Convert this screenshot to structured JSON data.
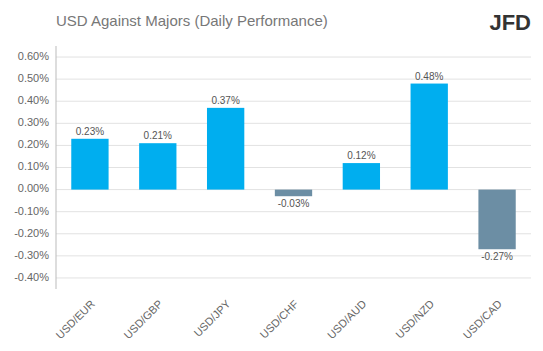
{
  "chart_data": {
    "type": "bar",
    "title": "USD Against Majors (Daily Performance)",
    "annotations": [
      "JFD"
    ],
    "categories": [
      "USD/EUR",
      "USD/GBP",
      "USD/JPY",
      "USD/CHF",
      "USD/AUD",
      "USD/NZD",
      "USD/CAD"
    ],
    "values": [
      0.23,
      0.21,
      0.37,
      -0.03,
      0.12,
      0.48,
      -0.27
    ],
    "value_labels": [
      "0.23%",
      "0.21%",
      "0.37%",
      "-0.03%",
      "0.12%",
      "0.48%",
      "-0.27%"
    ],
    "colors": [
      "#00AEEF",
      "#00AEEF",
      "#00AEEF",
      "#6C8EA4",
      "#00AEEF",
      "#00AEEF",
      "#6C8EA4"
    ],
    "data_labels": true,
    "ylim": [
      -0.45,
      0.65
    ],
    "yticks": [
      {
        "value": -0.4,
        "label": "-0.40%"
      },
      {
        "value": -0.3,
        "label": "-0.30%"
      },
      {
        "value": -0.2,
        "label": "-0.20%"
      },
      {
        "value": -0.1,
        "label": "-0.10%"
      },
      {
        "value": 0.0,
        "label": "0.00%"
      },
      {
        "value": 0.1,
        "label": "0.10%"
      },
      {
        "value": 0.2,
        "label": "0.20%"
      },
      {
        "value": 0.3,
        "label": "0.30%"
      },
      {
        "value": 0.4,
        "label": "0.40%"
      },
      {
        "value": 0.5,
        "label": "0.50%"
      },
      {
        "value": 0.6,
        "label": "0.60%"
      }
    ],
    "grid": true
  }
}
